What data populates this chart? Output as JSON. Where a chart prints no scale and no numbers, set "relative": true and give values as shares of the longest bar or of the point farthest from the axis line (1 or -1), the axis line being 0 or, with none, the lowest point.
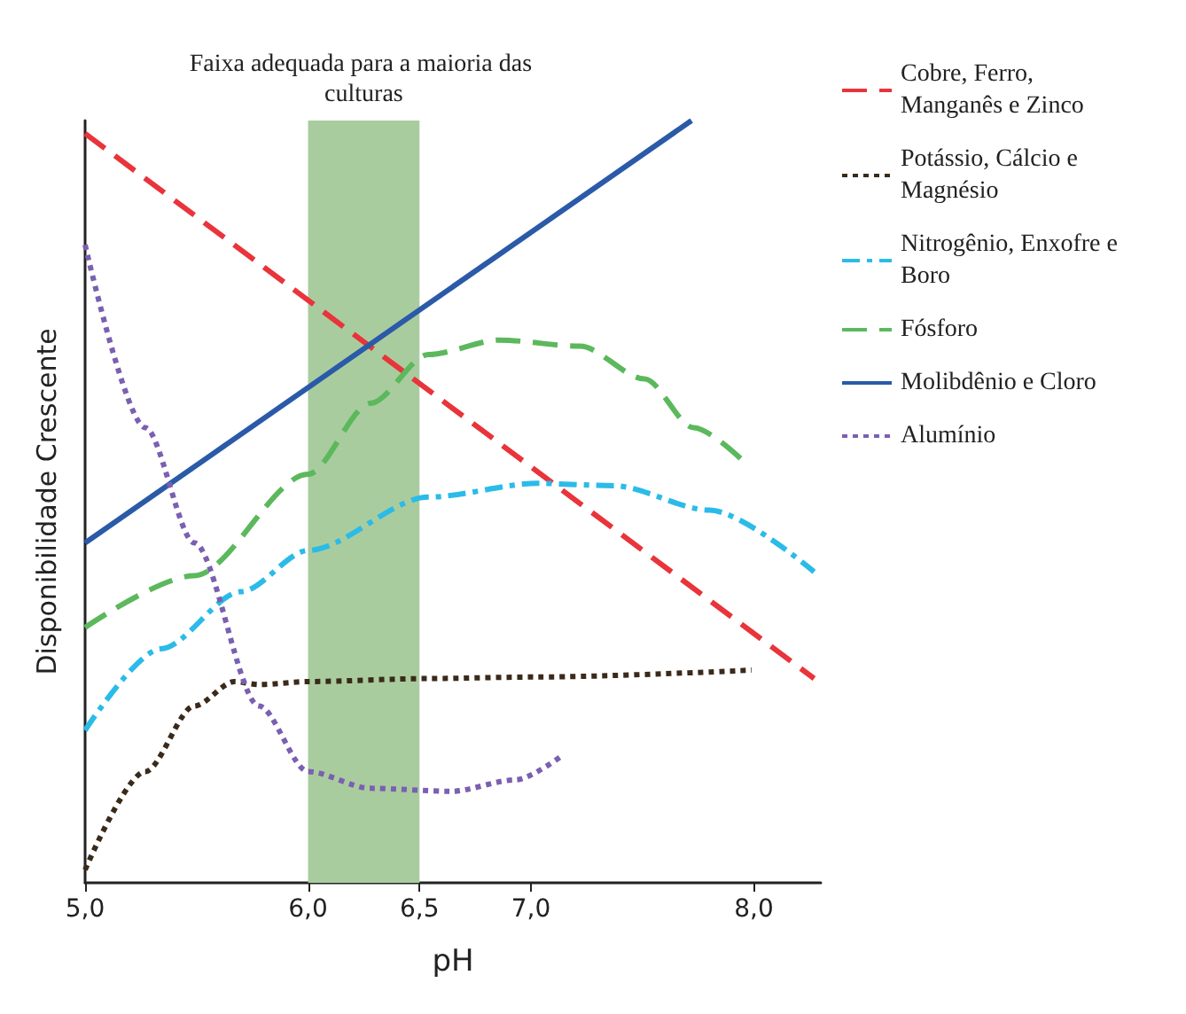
{
  "chart_data": {
    "type": "line",
    "relative": true,
    "xlabel": "pH",
    "ylabel": "Disponibilidade Crescente",
    "xlim": [
      5,
      8.3
    ],
    "xticks": [
      {
        "value": 5,
        "label": "5,0"
      },
      {
        "value": 6,
        "label": "6,0"
      },
      {
        "value": 6.5,
        "label": "6,5"
      },
      {
        "value": 7,
        "label": "7,0"
      },
      {
        "value": 8,
        "label": "8,0"
      }
    ],
    "grid": false,
    "legend": "right",
    "marker": "none",
    "series": [
      {
        "name": "Cobre, Ferro, Manganês e Zinco",
        "color": "#e8343a",
        "line_style": "dashed",
        "x": [
          5,
          8.27
        ],
        "values": [
          0.983,
          0.268
        ]
      },
      {
        "name": "Potássio, Cálcio e Magnésio",
        "color": "#3a2a1a",
        "line_style": "dotted",
        "x": [
          5,
          5.27,
          5.49,
          5.67,
          5.78,
          6,
          6.54,
          7.03,
          7.99
        ],
        "values": [
          0.017,
          0.146,
          0.232,
          0.264,
          0.26,
          0.264,
          0.268,
          0.27,
          0.279
        ]
      },
      {
        "name": "Nitrogênio, Enxofre e Boro",
        "color": "#2bbbe8",
        "line_style": "dashdot",
        "x": [
          5,
          5.34,
          5.7,
          6,
          6.54,
          7.03,
          7.37,
          7.8,
          8.27
        ],
        "values": [
          0.2,
          0.307,
          0.382,
          0.436,
          0.506,
          0.524,
          0.521,
          0.489,
          0.408
        ]
      },
      {
        "name": "Fósforo",
        "color": "#5cb85c",
        "line_style": "dashed",
        "x": [
          5,
          5.49,
          6,
          6.28,
          6.54,
          6.86,
          7.22,
          7.51,
          7.73,
          7.95
        ],
        "values": [
          0.335,
          0.403,
          0.536,
          0.629,
          0.693,
          0.712,
          0.704,
          0.661,
          0.597,
          0.554
        ]
      },
      {
        "name": "Molibdênio e Cloro",
        "color": "#2a5aa8",
        "line_style": "solid",
        "x": [
          5,
          7.72
        ],
        "values": [
          0.446,
          1
        ]
      },
      {
        "name": "Alumínio",
        "color": "#7b5fb0",
        "line_style": "dotted",
        "x": [
          5,
          5.27,
          5.49,
          5.78,
          6,
          6.28,
          6.64,
          6.93,
          7.14
        ],
        "values": [
          0.837,
          0.597,
          0.446,
          0.232,
          0.146,
          0.124,
          0.12,
          0.135,
          0.167
        ]
      }
    ],
    "bands": [
      {
        "axis": "x",
        "from": 6,
        "to": 6.5,
        "label": "Faixa adequada para a maioria das culturas",
        "color": "#a9cc9f"
      }
    ]
  }
}
